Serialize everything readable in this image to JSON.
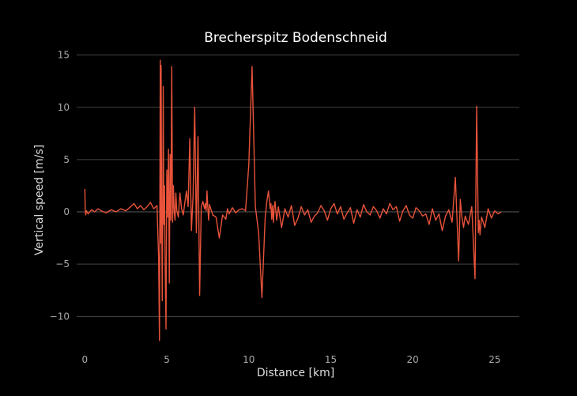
{
  "chart_data": {
    "type": "line",
    "title": "Brecherspitz Bodenschneid",
    "xlabel": "Distance [km]",
    "ylabel": "Vertical speed [m/s]",
    "xlim": [
      -0.5,
      26.5
    ],
    "ylim": [
      -13,
      15.5
    ],
    "x_ticks": [
      0,
      5,
      10,
      15,
      20,
      25
    ],
    "y_ticks": [
      15,
      10,
      5,
      0,
      -5,
      -10
    ],
    "x_tick_labels": [
      "0",
      "5",
      "10",
      "15",
      "20",
      "25"
    ],
    "y_tick_labels": [
      "15",
      "10",
      "5",
      "0",
      "−5",
      "−10"
    ],
    "grid": true,
    "legend": "none",
    "series": [
      {
        "color": "#e8533a",
        "x": [
          0,
          0.02,
          0.05,
          0.1,
          0.2,
          0.4,
          0.6,
          0.8,
          1.0,
          1.3,
          1.6,
          1.9,
          2.2,
          2.5,
          2.8,
          3.0,
          3.2,
          3.4,
          3.6,
          3.8,
          4.0,
          4.2,
          4.4,
          4.5,
          4.55,
          4.6,
          4.62,
          4.65,
          4.68,
          4.72,
          4.75,
          4.78,
          4.82,
          4.86,
          4.9,
          4.95,
          5.0,
          5.05,
          5.1,
          5.15,
          5.2,
          5.25,
          5.3,
          5.35,
          5.4,
          5.45,
          5.5,
          5.55,
          5.6,
          5.7,
          5.8,
          5.9,
          6.0,
          6.1,
          6.2,
          6.3,
          6.4,
          6.5,
          6.6,
          6.7,
          6.8,
          6.9,
          7.0,
          7.1,
          7.2,
          7.3,
          7.35,
          7.4,
          7.45,
          7.5,
          7.55,
          7.6,
          7.7,
          7.8,
          8.0,
          8.2,
          8.4,
          8.6,
          8.7,
          8.8,
          9.0,
          9.2,
          9.4,
          9.6,
          9.8,
          10.0,
          10.2,
          10.4,
          10.6,
          10.8,
          11.0,
          11.1,
          11.2,
          11.3,
          11.35,
          11.4,
          11.45,
          11.5,
          11.55,
          11.6,
          11.7,
          11.8,
          12.0,
          12.2,
          12.4,
          12.6,
          12.8,
          13.0,
          13.2,
          13.4,
          13.6,
          13.8,
          14.0,
          14.2,
          14.4,
          14.6,
          14.8,
          15.0,
          15.2,
          15.4,
          15.6,
          15.8,
          16.0,
          16.2,
          16.4,
          16.6,
          16.8,
          17.0,
          17.2,
          17.4,
          17.6,
          17.8,
          18.0,
          18.2,
          18.4,
          18.6,
          18.8,
          19.0,
          19.2,
          19.4,
          19.6,
          19.8,
          20.0,
          20.2,
          20.4,
          20.6,
          20.8,
          21.0,
          21.2,
          21.4,
          21.6,
          21.8,
          22.0,
          22.2,
          22.4,
          22.6,
          22.8,
          22.9,
          23.0,
          23.1,
          23.2,
          23.4,
          23.6,
          23.8,
          23.9,
          24.0,
          24.05,
          24.1,
          24.2,
          24.4,
          24.6,
          24.8,
          25.0,
          25.2,
          25.4
        ],
        "y": [
          2.2,
          0.3,
          -0.3,
          0.1,
          -0.2,
          0.2,
          0.0,
          0.3,
          0.1,
          -0.1,
          0.2,
          0.0,
          0.3,
          0.1,
          0.5,
          0.8,
          0.3,
          0.6,
          0.2,
          0.5,
          0.9,
          0.3,
          0.6,
          -4.5,
          -12.3,
          14.5,
          -3.0,
          14.0,
          2.0,
          -8.5,
          -0.5,
          12.0,
          -1.2,
          2.5,
          -5.5,
          -11.2,
          4.0,
          -0.5,
          6.0,
          -6.8,
          5.5,
          -0.8,
          13.9,
          -1.0,
          2.5,
          0.0,
          -0.8,
          1.8,
          0.2,
          -0.5,
          1.8,
          0.3,
          -0.3,
          0.9,
          2.0,
          0.5,
          7.0,
          -1.8,
          1.5,
          10.0,
          -2.0,
          7.2,
          -8.0,
          0.5,
          1.0,
          0.3,
          0.8,
          0.1,
          2.0,
          0.4,
          -0.8,
          0.7,
          0.2,
          -0.3,
          -0.5,
          -2.5,
          -0.3,
          -0.7,
          0.3,
          -0.2,
          0.4,
          -0.1,
          0.2,
          0.3,
          0.1,
          4.5,
          13.9,
          0.5,
          -2.0,
          -8.2,
          -0.5,
          1.0,
          2.0,
          0.3,
          0.8,
          -0.7,
          0.6,
          -1.0,
          0.4,
          1.0,
          -0.8,
          0.5,
          -1.5,
          0.3,
          -0.5,
          0.6,
          -1.3,
          -0.6,
          0.5,
          -0.3,
          0.2,
          -1.0,
          -0.4,
          -0.1,
          0.6,
          0.1,
          -0.8,
          0.3,
          0.8,
          -0.2,
          0.5,
          -0.7,
          -0.1,
          0.4,
          -1.1,
          0.2,
          -0.5,
          0.7,
          0.0,
          -0.3,
          0.5,
          0.1,
          -0.6,
          0.3,
          -0.2,
          0.8,
          0.2,
          0.5,
          -0.9,
          0.1,
          0.6,
          -0.3,
          -0.6,
          0.4,
          0.1,
          -0.4,
          -0.2,
          -1.2,
          0.3,
          -0.8,
          -0.2,
          -1.8,
          -0.4,
          0.2,
          -1.0,
          3.3,
          -4.7,
          1.2,
          -0.5,
          -1.5,
          -0.4,
          -1.2,
          0.5,
          -6.4,
          10.1,
          -2.0,
          -0.8,
          -2.2,
          -0.5,
          -1.5,
          0.3,
          -0.6,
          0.1,
          -0.2,
          0.0
        ]
      }
    ]
  }
}
